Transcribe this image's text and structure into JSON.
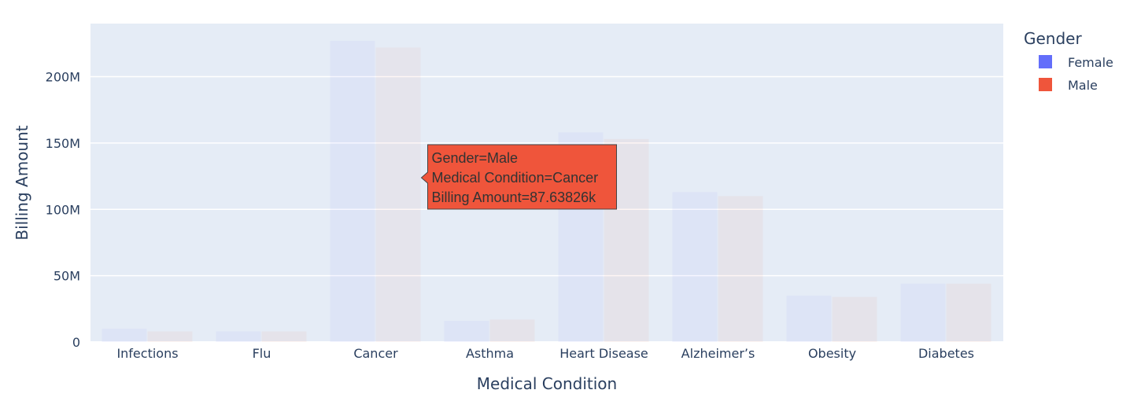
{
  "chart_data": {
    "type": "bar",
    "barmode": "group",
    "xlabel": "Medical Condition",
    "ylabel": "Billing Amount",
    "categories": [
      "Infections",
      "Flu",
      "Cancer",
      "Asthma",
      "Heart Disease",
      "Alzheimer’s",
      "Obesity",
      "Diabetes"
    ],
    "series": [
      {
        "name": "Female",
        "color": "#636efa",
        "values": [
          10000000,
          8000000,
          227000000,
          16000000,
          158000000,
          113000000,
          35000000,
          44000000
        ]
      },
      {
        "name": "Male",
        "color": "#ef553b",
        "values": [
          8000000,
          8000000,
          222000000,
          17000000,
          153000000,
          110000000,
          34000000,
          44000000
        ]
      }
    ],
    "ylim": [
      0,
      240000000
    ],
    "yticks": [
      0,
      50000000,
      100000000,
      150000000,
      200000000
    ],
    "ytick_labels": [
      "0",
      "50M",
      "100M",
      "150M",
      "200M"
    ],
    "legend": {
      "title": "Gender",
      "placement": "top-right"
    },
    "grid": true,
    "plot_bg": "#e5ecf6",
    "hover": {
      "series": "Male",
      "category": "Cancer",
      "lines": [
        "Gender=Male",
        "Medical Condition=Cancer",
        "Billing Amount=87.63826k"
      ]
    }
  }
}
